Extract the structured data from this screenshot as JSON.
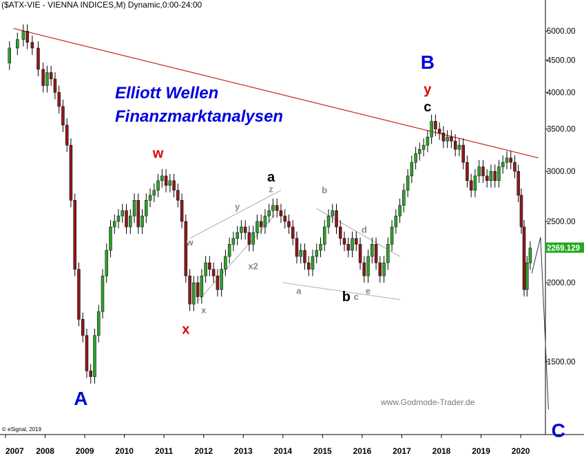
{
  "chart_data": {
    "type": "candlestick",
    "title": "($ATX-VIE - VIENNA INDICES,M) Dynamic,0:00-24:00",
    "overlay_title": [
      "Elliott Wellen",
      "Finanzmarktanalysen"
    ],
    "watermark": "www.Godmode-Trader.de",
    "copyright": "© eSignal, 2019",
    "y_scale": "log",
    "y_range": [
      1150,
      5600
    ],
    "x_range": [
      2007.0,
      2020.45
    ],
    "y_ticks": [
      {
        "value": 5000,
        "label": "5000.00"
      },
      {
        "value": 4500,
        "label": "4500.00"
      },
      {
        "value": 4000,
        "label": "4000.00"
      },
      {
        "value": 3500,
        "label": "3500.00"
      },
      {
        "value": 3000,
        "label": "3000.00"
      },
      {
        "value": 2500,
        "label": "2500.00"
      },
      {
        "value": 2000,
        "label": "2000.00"
      },
      {
        "value": 1500,
        "label": "1500.00"
      }
    ],
    "x_ticks": [
      {
        "value": 2007,
        "label": "2007"
      },
      {
        "value": 2008,
        "label": "2008"
      },
      {
        "value": 2009,
        "label": "2009"
      },
      {
        "value": 2010,
        "label": "2010"
      },
      {
        "value": 2011,
        "label": "2011"
      },
      {
        "value": 2012,
        "label": "2012"
      },
      {
        "value": 2013,
        "label": "2013"
      },
      {
        "value": 2014,
        "label": "2014"
      },
      {
        "value": 2015,
        "label": "2015"
      },
      {
        "value": 2016,
        "label": "2016"
      },
      {
        "value": 2017,
        "label": "2017"
      },
      {
        "value": 2018,
        "label": "2018"
      },
      {
        "value": 2019,
        "label": "2019"
      },
      {
        "value": 2020,
        "label": "2020"
      }
    ],
    "last_price": {
      "value": 2269.13,
      "label": "2269.129"
    },
    "colors": {
      "up": "#2ea02e",
      "down": "#8b1a1a",
      "wick": "#000000",
      "trendline": "#cc2222",
      "channel": "#aaaaaa",
      "projection": "#333333",
      "wave_blue": "#0000dd",
      "wave_red": "#dd0000",
      "wave_black": "#000000",
      "wave_gray": "#888888"
    },
    "price_path": [
      [
        2007.0,
        4450
      ],
      [
        2007.2,
        4700
      ],
      [
        2007.4,
        4850
      ],
      [
        2007.5,
        5000
      ],
      [
        2007.6,
        4800
      ],
      [
        2007.75,
        4700
      ],
      [
        2007.9,
        4350
      ],
      [
        2008.0,
        4100
      ],
      [
        2008.1,
        4300
      ],
      [
        2008.2,
        4200
      ],
      [
        2008.3,
        4000
      ],
      [
        2008.4,
        3800
      ],
      [
        2008.5,
        3550
      ],
      [
        2008.6,
        3300
      ],
      [
        2008.7,
        2700
      ],
      [
        2008.8,
        2100
      ],
      [
        2008.9,
        1750
      ],
      [
        2009.0,
        1650
      ],
      [
        2009.1,
        1450
      ],
      [
        2009.2,
        1420
      ],
      [
        2009.3,
        1650
      ],
      [
        2009.4,
        1800
      ],
      [
        2009.5,
        2050
      ],
      [
        2009.6,
        2250
      ],
      [
        2009.7,
        2450
      ],
      [
        2009.8,
        2500
      ],
      [
        2009.9,
        2550
      ],
      [
        2010.0,
        2600
      ],
      [
        2010.1,
        2450
      ],
      [
        2010.2,
        2550
      ],
      [
        2010.3,
        2700
      ],
      [
        2010.4,
        2450
      ],
      [
        2010.5,
        2550
      ],
      [
        2010.6,
        2700
      ],
      [
        2010.7,
        2750
      ],
      [
        2010.8,
        2800
      ],
      [
        2010.9,
        2900
      ],
      [
        2011.0,
        2950
      ],
      [
        2011.1,
        2850
      ],
      [
        2011.2,
        2900
      ],
      [
        2011.3,
        2800
      ],
      [
        2011.4,
        2700
      ],
      [
        2011.5,
        2500
      ],
      [
        2011.6,
        2050
      ],
      [
        2011.7,
        1850
      ],
      [
        2011.8,
        2000
      ],
      [
        2011.9,
        1900
      ],
      [
        2012.0,
        2050
      ],
      [
        2012.1,
        2150
      ],
      [
        2012.2,
        2100
      ],
      [
        2012.3,
        2050
      ],
      [
        2012.4,
        1950
      ],
      [
        2012.5,
        2100
      ],
      [
        2012.6,
        2200
      ],
      [
        2012.7,
        2300
      ],
      [
        2012.8,
        2350
      ],
      [
        2012.9,
        2400
      ],
      [
        2013.0,
        2450
      ],
      [
        2013.1,
        2400
      ],
      [
        2013.2,
        2300
      ],
      [
        2013.3,
        2400
      ],
      [
        2013.4,
        2500
      ],
      [
        2013.5,
        2450
      ],
      [
        2013.6,
        2550
      ],
      [
        2013.7,
        2600
      ],
      [
        2013.8,
        2650
      ],
      [
        2013.9,
        2600
      ],
      [
        2014.0,
        2550
      ],
      [
        2014.1,
        2500
      ],
      [
        2014.2,
        2450
      ],
      [
        2014.3,
        2350
      ],
      [
        2014.4,
        2200
      ],
      [
        2014.5,
        2250
      ],
      [
        2014.6,
        2150
      ],
      [
        2014.7,
        2100
      ],
      [
        2014.8,
        2200
      ],
      [
        2014.9,
        2250
      ],
      [
        2015.0,
        2300
      ],
      [
        2015.1,
        2450
      ],
      [
        2015.2,
        2550
      ],
      [
        2015.3,
        2600
      ],
      [
        2015.4,
        2450
      ],
      [
        2015.5,
        2350
      ],
      [
        2015.6,
        2300
      ],
      [
        2015.7,
        2250
      ],
      [
        2015.8,
        2350
      ],
      [
        2015.9,
        2300
      ],
      [
        2016.0,
        2150
      ],
      [
        2016.1,
        2050
      ],
      [
        2016.2,
        2200
      ],
      [
        2016.3,
        2300
      ],
      [
        2016.4,
        2150
      ],
      [
        2016.5,
        2050
      ],
      [
        2016.6,
        2150
      ],
      [
        2016.7,
        2300
      ],
      [
        2016.8,
        2450
      ],
      [
        2016.9,
        2550
      ],
      [
        2017.0,
        2650
      ],
      [
        2017.1,
        2800
      ],
      [
        2017.2,
        2950
      ],
      [
        2017.3,
        3100
      ],
      [
        2017.4,
        3200
      ],
      [
        2017.5,
        3250
      ],
      [
        2017.6,
        3300
      ],
      [
        2017.7,
        3400
      ],
      [
        2017.8,
        3600
      ],
      [
        2017.9,
        3500
      ],
      [
        2018.0,
        3450
      ],
      [
        2018.1,
        3350
      ],
      [
        2018.2,
        3400
      ],
      [
        2018.3,
        3350
      ],
      [
        2018.4,
        3250
      ],
      [
        2018.5,
        3300
      ],
      [
        2018.6,
        3100
      ],
      [
        2018.7,
        2900
      ],
      [
        2018.8,
        2800
      ],
      [
        2018.9,
        2950
      ],
      [
        2019.0,
        3050
      ],
      [
        2019.1,
        2950
      ],
      [
        2019.2,
        2900
      ],
      [
        2019.3,
        3000
      ],
      [
        2019.4,
        2900
      ],
      [
        2019.5,
        3050
      ],
      [
        2019.6,
        3100
      ],
      [
        2019.7,
        3150
      ],
      [
        2019.8,
        3100
      ],
      [
        2019.9,
        3000
      ],
      [
        2019.98,
        2750
      ],
      [
        2020.05,
        2450
      ],
      [
        2020.12,
        1950
      ],
      [
        2020.2,
        2150
      ],
      [
        2020.28,
        2269
      ]
    ],
    "trendline": [
      [
        2007.2,
        5050
      ],
      [
        2020.45,
        3150
      ]
    ],
    "channels": [
      [
        [
          2011.65,
          2350
        ],
        [
          2013.95,
          2800
        ]
      ],
      [
        [
          2011.85,
          1870
        ],
        [
          2013.8,
          2560
        ]
      ],
      [
        [
          2014.85,
          2620
        ],
        [
          2016.95,
          2200
        ]
      ],
      [
        [
          2014.0,
          2000
        ],
        [
          2016.95,
          1880
        ]
      ]
    ],
    "projection": [
      [
        2020.28,
        2070
      ],
      [
        2020.5,
        2360
      ],
      [
        2020.7,
        1260
      ]
    ],
    "wave_labels": [
      {
        "text": "A",
        "x": 2008.9,
        "y": 1280,
        "color": "blue",
        "size": "large"
      },
      {
        "text": "w",
        "x": 2010.85,
        "y": 3150,
        "color": "red",
        "size": "medium"
      },
      {
        "text": "x",
        "x": 2011.55,
        "y": 1660,
        "color": "red",
        "size": "medium"
      },
      {
        "text": "a",
        "x": 2013.7,
        "y": 2890,
        "color": "black",
        "size": "medium"
      },
      {
        "text": "b",
        "x": 2015.6,
        "y": 1870,
        "color": "black",
        "size": "medium"
      },
      {
        "text": "B",
        "x": 2017.65,
        "y": 4360,
        "color": "blue",
        "size": "large"
      },
      {
        "text": "y",
        "x": 2017.65,
        "y": 3980,
        "color": "red",
        "size": "medium"
      },
      {
        "text": "c",
        "x": 2017.65,
        "y": 3730,
        "color": "black",
        "size": "medium"
      },
      {
        "text": "C",
        "x": 2020.95,
        "y": 1140,
        "color": "blue",
        "size": "large"
      },
      {
        "text": "w",
        "x": 2011.65,
        "y": 2290,
        "color": "gray",
        "size": "small"
      },
      {
        "text": "x",
        "x": 2012.0,
        "y": 1790,
        "color": "gray",
        "size": "small"
      },
      {
        "text": "y",
        "x": 2012.85,
        "y": 2610,
        "color": "gray",
        "size": "small"
      },
      {
        "text": "x2",
        "x": 2013.25,
        "y": 2100,
        "color": "gray",
        "size": "small"
      },
      {
        "text": "z",
        "x": 2013.7,
        "y": 2780,
        "color": "gray",
        "size": "small"
      },
      {
        "text": "a",
        "x": 2014.4,
        "y": 1920,
        "color": "gray",
        "size": "small"
      },
      {
        "text": "b",
        "x": 2015.05,
        "y": 2770,
        "color": "gray",
        "size": "small"
      },
      {
        "text": "c",
        "x": 2015.85,
        "y": 1880,
        "color": "gray",
        "size": "small"
      },
      {
        "text": "d",
        "x": 2016.05,
        "y": 2400,
        "color": "gray",
        "size": "small"
      },
      {
        "text": "e",
        "x": 2016.15,
        "y": 1920,
        "color": "gray",
        "size": "small"
      }
    ]
  }
}
